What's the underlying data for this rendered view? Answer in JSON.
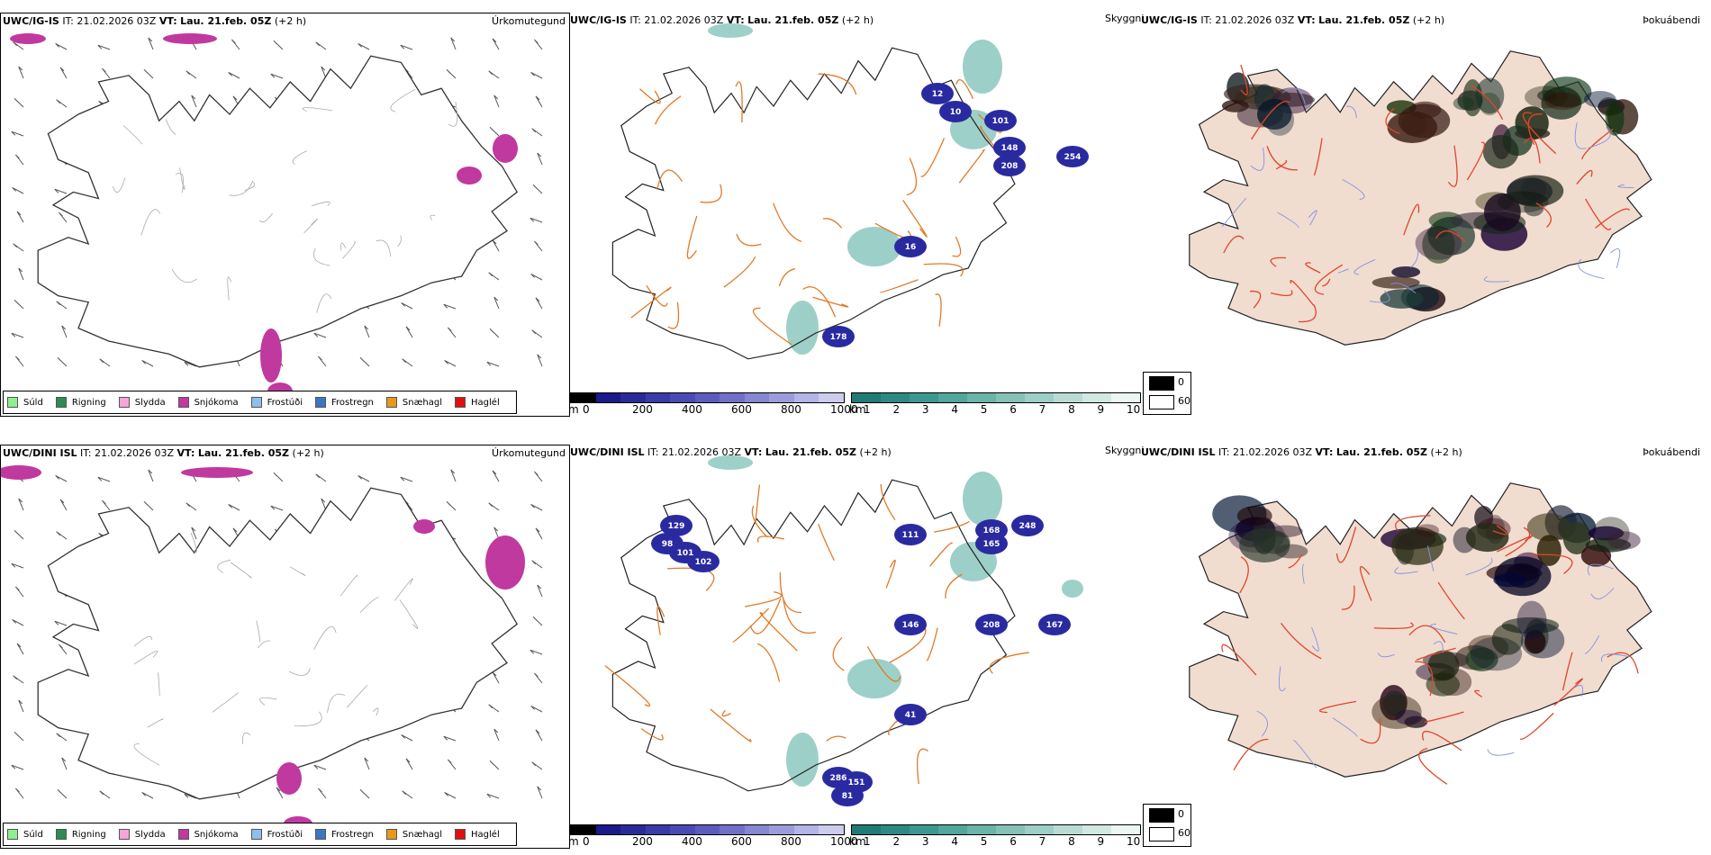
{
  "rows": [
    {
      "model": "UWC/IG-IS",
      "it_label": "IT:",
      "it_value": "21.02.2026 03Z",
      "vt_label": "VT:",
      "vt_value": "Lau. 21.feb. 05Z",
      "offset": "(+2 h)",
      "ceiling_values": [
        "12",
        "10",
        "101",
        "148",
        "208",
        "254",
        "16",
        "178"
      ]
    },
    {
      "model": "UWC/DINI ISL",
      "it_label": "IT:",
      "it_value": "21.02.2026 03Z",
      "vt_label": "VT:",
      "vt_value": "Lau. 21.feb. 05Z",
      "offset": "(+2 h)",
      "ceiling_values": [
        "129",
        "98",
        "101",
        "102",
        "111",
        "168",
        "165",
        "248",
        "146",
        "208",
        "167",
        "41",
        "286",
        "151",
        "81"
      ]
    }
  ],
  "panel_titles": {
    "precip": "Úrkomutegund",
    "visibility": "Skyggni",
    "fog": "Þokuábendi"
  },
  "precip_legend": [
    {
      "label": "Súld",
      "color": "#90ee90"
    },
    {
      "label": "Rigning",
      "color": "#2e8b57"
    },
    {
      "label": "Slydda",
      "color": "#f4a6d7"
    },
    {
      "label": "Snjókoma",
      "color": "#c0399f"
    },
    {
      "label": "Frostúði",
      "color": "#8fbfef"
    },
    {
      "label": "Frostregn",
      "color": "#3a78c0"
    },
    {
      "label": "Snæhagl",
      "color": "#e69a1c"
    },
    {
      "label": "Haglél",
      "color": "#e01010"
    }
  ],
  "ceiling_scale": {
    "unit": "m",
    "ticks": [
      "0",
      "200",
      "400",
      "600",
      "800",
      "1000"
    ],
    "colors": [
      "#000000",
      "#1a1a8a",
      "#2a2a9a",
      "#3a3aa8",
      "#4a4ab4",
      "#5c5cbe",
      "#7070c8",
      "#8686d2",
      "#9c9cdc",
      "#b4b4e6",
      "#ccccef"
    ]
  },
  "visibility_scale": {
    "unit": "km",
    "ticks": [
      "1",
      "2",
      "3",
      "4",
      "5",
      "6",
      "7",
      "8",
      "9",
      "10"
    ],
    "colors": [
      "#1f7b74",
      "#2c8a82",
      "#3c988f",
      "#52a69c",
      "#6ab4aa",
      "#84c2b8",
      "#9ecfc6",
      "#b8dcd4",
      "#d2e9e2",
      "#ecf6f2"
    ]
  },
  "fog_legend": [
    {
      "value": "0",
      "color": "#000000"
    },
    {
      "value": "60",
      "color": "#ffffff"
    }
  ]
}
